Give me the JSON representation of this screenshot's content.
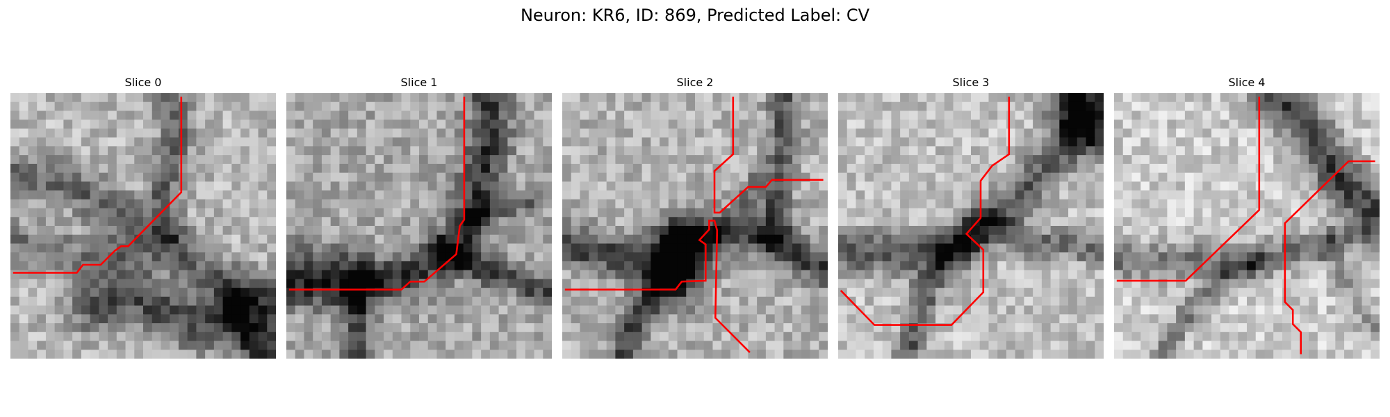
{
  "figure": {
    "title": "Neuron: KR6, ID: 869, Predicted Label: CV"
  },
  "colors": {
    "trace": "#ff0000",
    "background": "#ffffff"
  },
  "panels": [
    {
      "label": "Slice 0",
      "trace_description": "red boundary trace",
      "image_description": "grayscale membrane patch"
    },
    {
      "label": "Slice 1",
      "trace_description": "red boundary trace",
      "image_description": "grayscale membrane patch"
    },
    {
      "label": "Slice 2",
      "trace_description": "red boundary trace",
      "image_description": "grayscale membrane patch"
    },
    {
      "label": "Slice 3",
      "trace_description": "red boundary trace",
      "image_description": "grayscale membrane patch"
    },
    {
      "label": "Slice 4",
      "trace_description": "red boundary trace",
      "image_description": "grayscale membrane patch"
    }
  ]
}
